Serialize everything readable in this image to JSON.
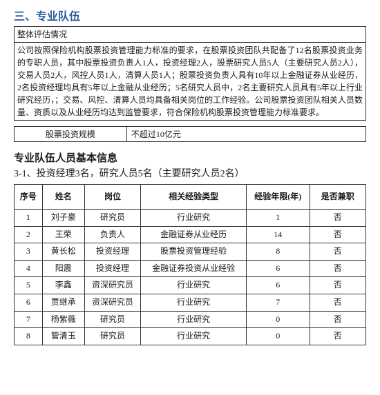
{
  "section": {
    "title": "三、专业队伍",
    "assessment_header": "整体评估情况",
    "assessment_body": "公司按照保险机构股票投资管理能力标准的要求，在股票投资团队共配备了12名股票投资业务的专职人员，其中股票投资负责人1人，投资经理2人，股票研究人员5人（主要研究人员2人），交易人员2人，风控人员1人，清算人员1人；股票投资负责人具有10年以上金融证券从业经历，2名投资经理均具有5年以上金融从业经历；5名研究人员中，2名主要研究人员具有5年以上行业研究经历，；交易、风控、清算人员均具备相关岗位的工作经验。公司股票投资团队相关人员数量、资质以及从业经历均达到监管要求，符合保险机构股票投资管理能力标准要求。"
  },
  "scale": {
    "label": "股票投资规模",
    "value": "不超过10亿元"
  },
  "personnel_section": {
    "heading": "专业队伍人员基本信息",
    "subtitle": "3-1、投资经理3名，研究人员5名（主要研究人员2名）"
  },
  "table": {
    "columns": [
      "序号",
      "姓名",
      "岗位",
      "相关经验类型",
      "经验年限(年)",
      "是否兼职"
    ],
    "rows": [
      [
        "1",
        "刘子豪",
        "研究员",
        "行业研究",
        "1",
        "否"
      ],
      [
        "2",
        "王荣",
        "负责人",
        "金融证券从业经历",
        "14",
        "否"
      ],
      [
        "3",
        "黄长松",
        "投资经理",
        "股票投资管理经验",
        "8",
        "否"
      ],
      [
        "4",
        "阳震",
        "投资经理",
        "金融证券投资从业经验",
        "6",
        "否"
      ],
      [
        "5",
        "李鑫",
        "资深研究员",
        "行业研究",
        "6",
        "否"
      ],
      [
        "6",
        "贾继承",
        "资深研究员",
        "行业研究",
        "7",
        "否"
      ],
      [
        "7",
        "杨紫薇",
        "研究员",
        "行业研究",
        "0",
        "否"
      ],
      [
        "8",
        "管清玉",
        "研究员",
        "行业研究",
        "0",
        "否"
      ]
    ]
  }
}
